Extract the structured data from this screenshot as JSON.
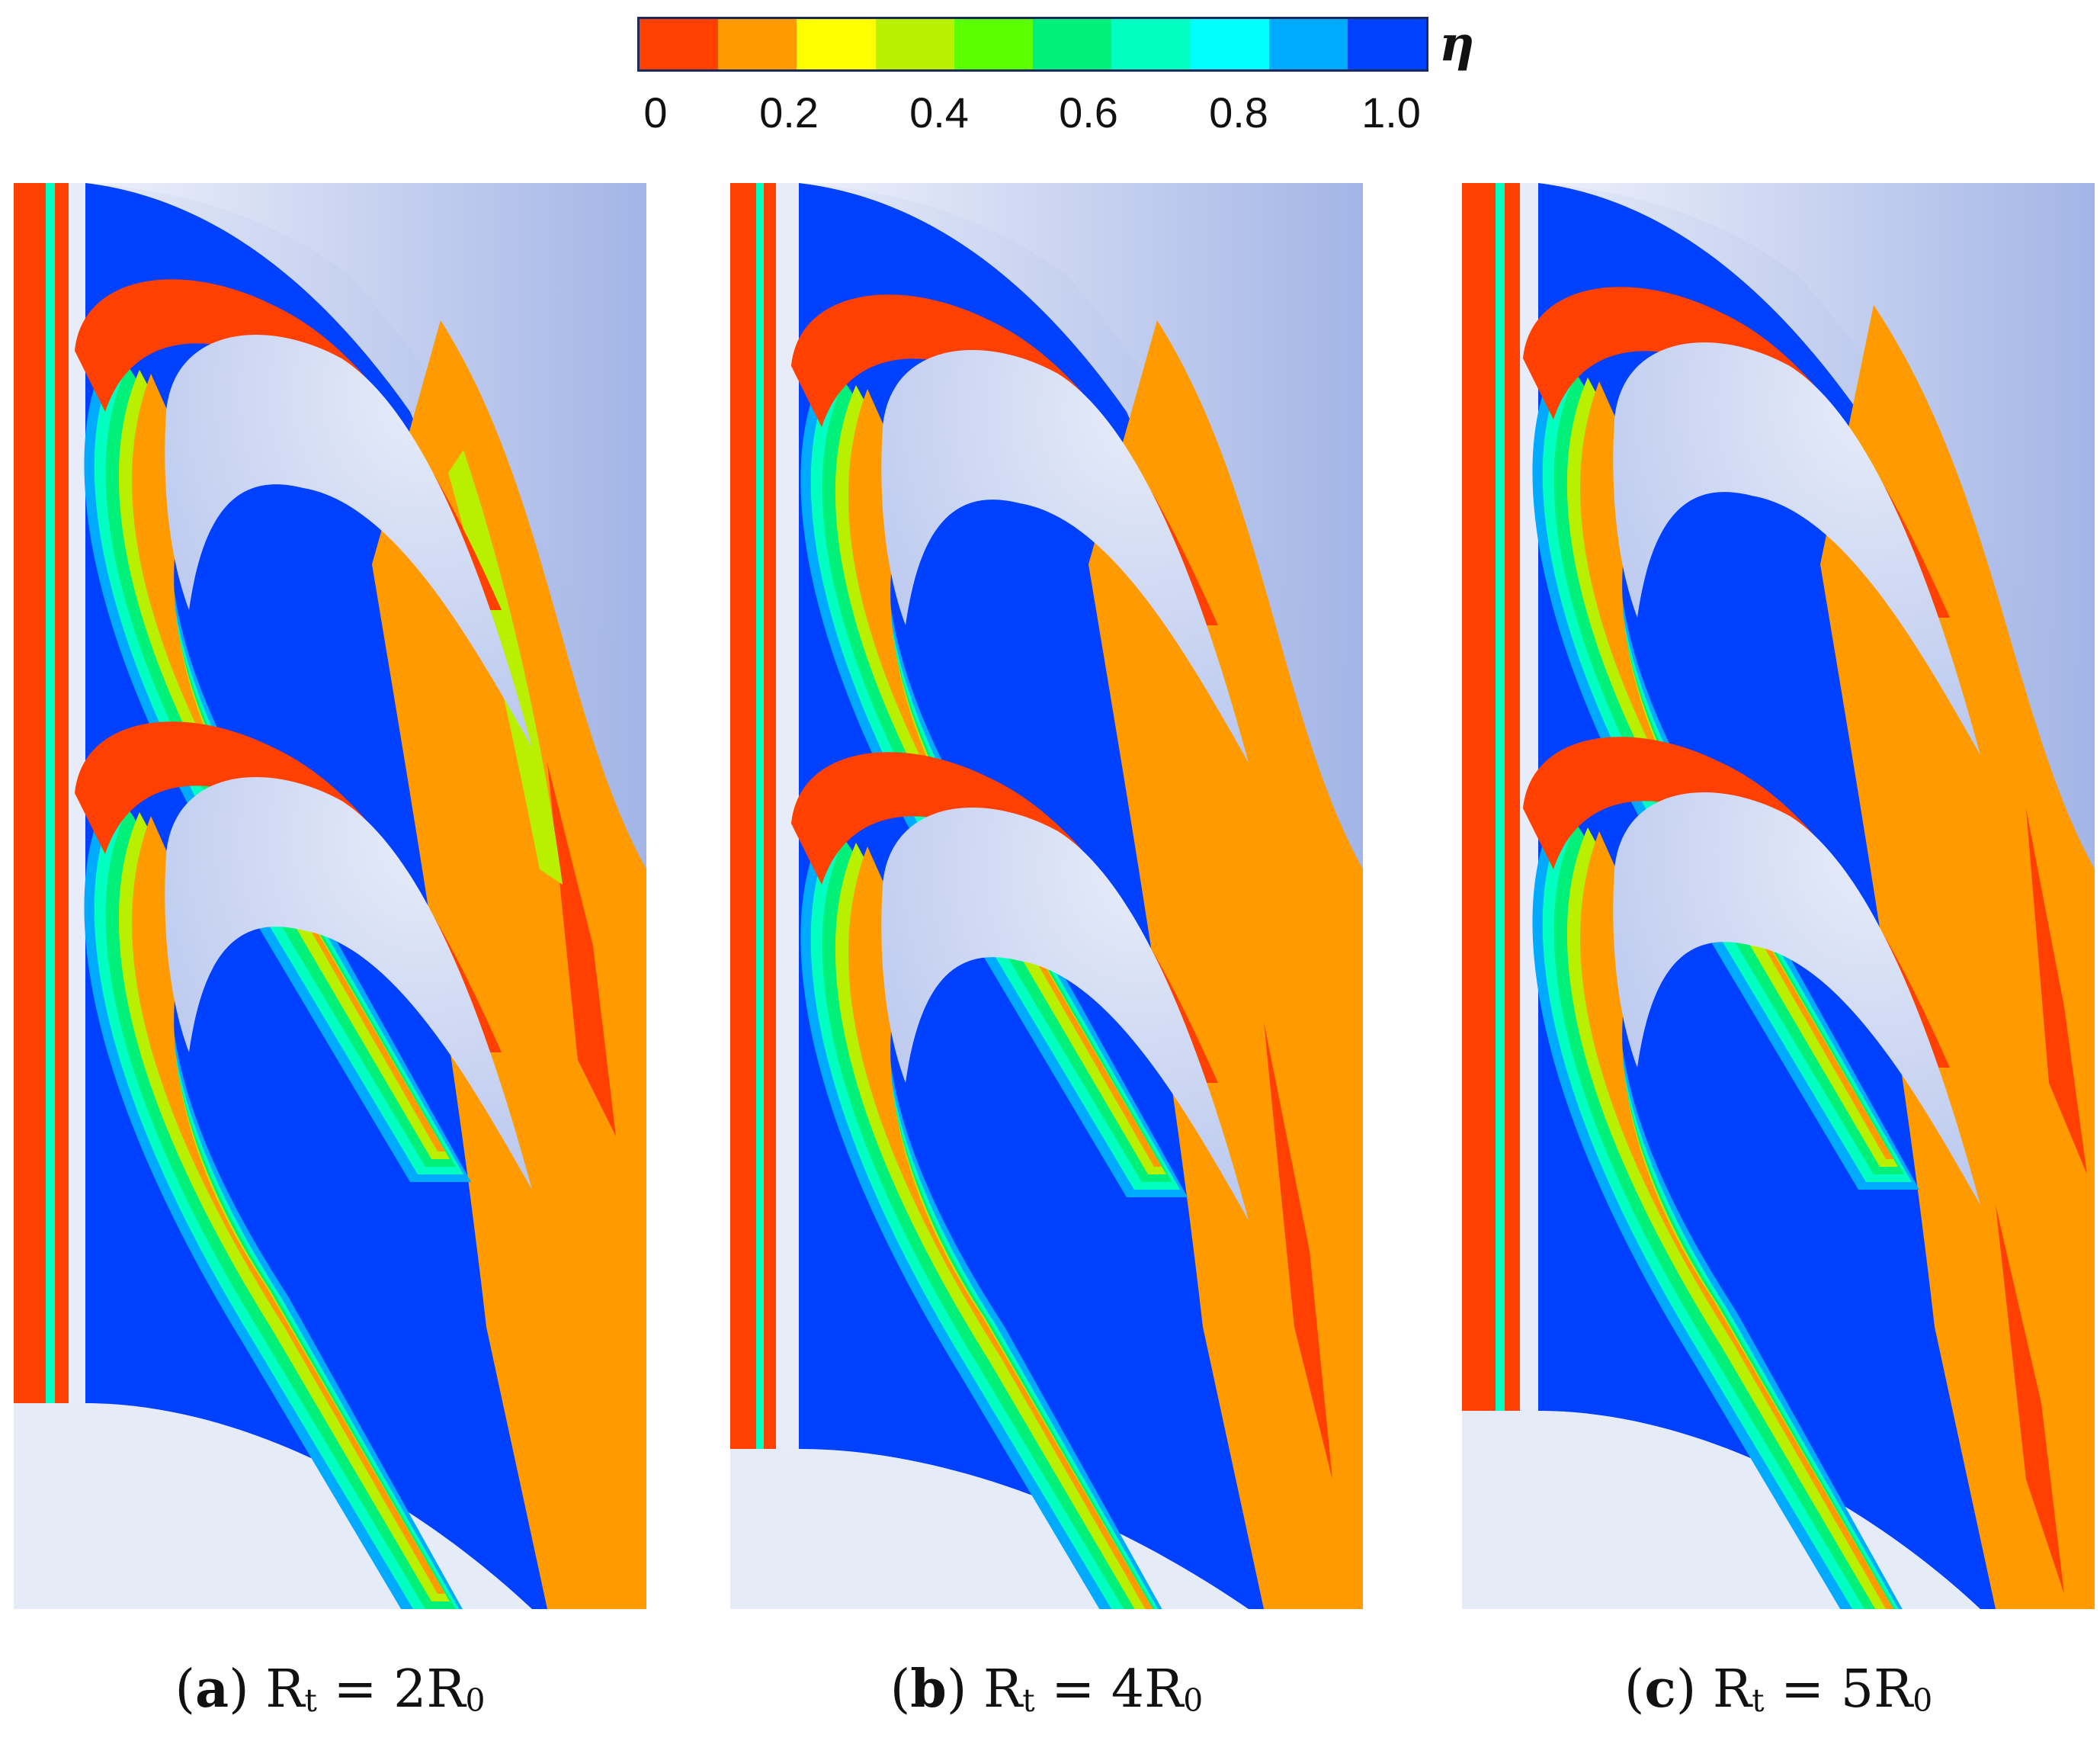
{
  "colorbar": {
    "title": "η",
    "colors": [
      "#ff4000",
      "#ff9a00",
      "#ffff00",
      "#b8f000",
      "#5cff00",
      "#00f07a",
      "#00ffc0",
      "#00ffff",
      "#00aaff",
      "#0040ff"
    ],
    "ticks": [
      "0",
      "0.2",
      "0.4",
      "0.6",
      "0.8",
      "1.0"
    ]
  },
  "panels": [
    {
      "letter": "a",
      "label_prefix": "R",
      "label_sub": "t",
      "label_mid": " = 2R",
      "label_sub2": "0"
    },
    {
      "letter": "b",
      "label_prefix": "R",
      "label_sub": "t",
      "label_mid": " = 4R",
      "label_sub2": "0"
    },
    {
      "letter": "c",
      "label_prefix": "R",
      "label_sub": "t",
      "label_mid": " = 5R",
      "label_sub2": "0"
    }
  ]
}
